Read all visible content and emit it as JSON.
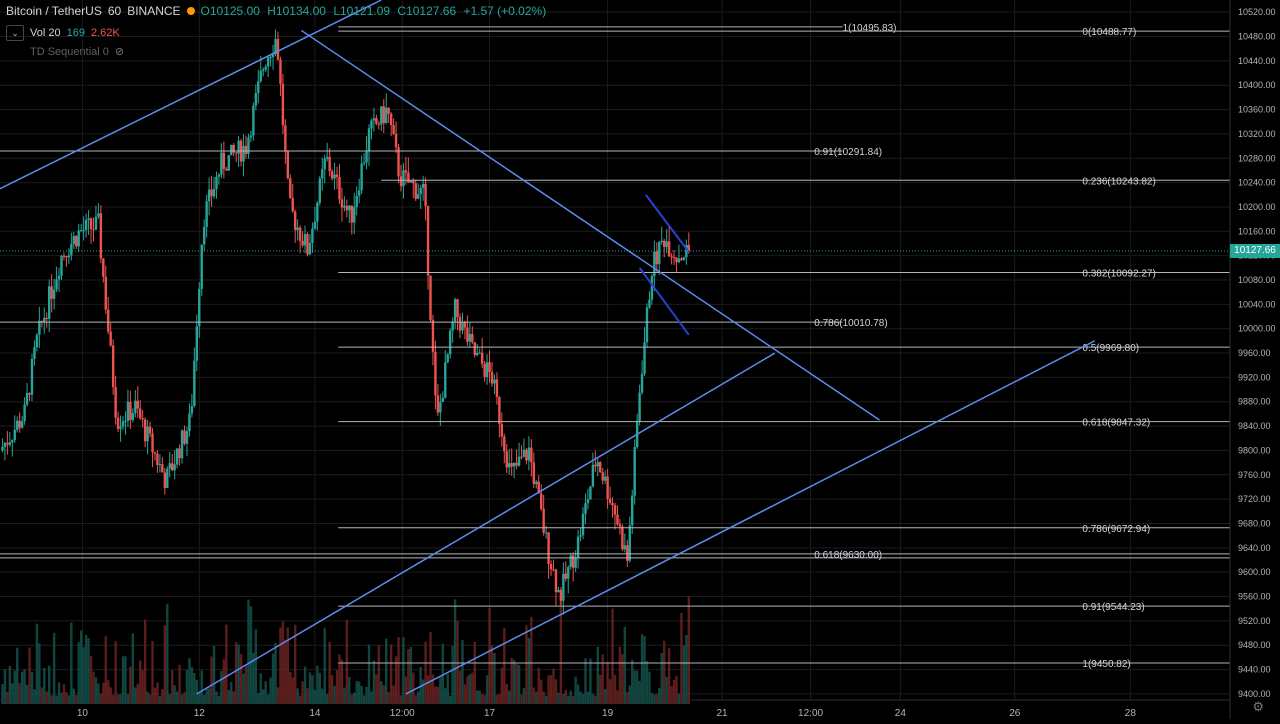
{
  "header": {
    "symbol": "Bitcoin / TetherUS",
    "interval": "60",
    "exchange": "BINANCE",
    "open": "O10125.00",
    "high": "H10134.00",
    "low": "L10121.09",
    "close": "C10127.66",
    "change": "+1.57 (+0.02%)"
  },
  "indicators": {
    "vol_label": "Vol 20",
    "vol_value_a": "169",
    "vol_value_b": "2.62K",
    "td_label": "TD Sequential 0"
  },
  "last_price": "10127.66",
  "colors": {
    "up": "#26a69a",
    "down": "#ef5350",
    "trendline": "#5b8def",
    "flag": "#2940d3",
    "fib_line": "#b2b5be",
    "background": "#000000",
    "grid": "#1c1c1c"
  },
  "chart_data": {
    "type": "candlestick",
    "y_range": [
      9390,
      10540
    ],
    "y_ticks": [
      "10520.00",
      "10480.00",
      "10440.00",
      "10400.00",
      "10360.00",
      "10320.00",
      "10280.00",
      "10240.00",
      "10200.00",
      "10160.00",
      "10120.00",
      "10080.00",
      "10040.00",
      "10000.00",
      "9960.00",
      "9920.00",
      "9880.00",
      "9840.00",
      "9800.00",
      "9760.00",
      "9720.00",
      "9680.00",
      "9640.00",
      "9600.00",
      "9560.00",
      "9520.00",
      "9480.00",
      "9440.00",
      "9400.00"
    ],
    "x_ticks": [
      "10",
      "12",
      "14",
      "12:00",
      "17",
      "19",
      "21",
      "12:00",
      "24",
      "26",
      "28"
    ],
    "fib_levels": [
      {
        "label": "1(10495.83)",
        "price": 10495.83
      },
      {
        "label": "0(10488.77)",
        "price": 10488.77
      },
      {
        "label": "0.91(10291.84)",
        "price": 10291.84
      },
      {
        "label": "0.236(10243.82)",
        "price": 10243.82
      },
      {
        "label": "0.382(10092.27)",
        "price": 10092.27
      },
      {
        "label": "0.786(10010.78)",
        "price": 10010.78
      },
      {
        "label": "0.5(9969.80)",
        "price": 9969.8
      },
      {
        "label": "0.618(9847.32)",
        "price": 9847.32
      },
      {
        "label": "0.786(9672.94)",
        "price": 9672.94
      },
      {
        "label": "0.618(9630.00)",
        "price": 9630.0
      },
      {
        "label": "0.91(9544.23)",
        "price": 9544.23
      },
      {
        "label": "1(9450.82)",
        "price": 9450.82
      }
    ],
    "price_path": [
      {
        "t": 0.0,
        "p": 9800
      },
      {
        "t": 0.02,
        "p": 9860
      },
      {
        "t": 0.03,
        "p": 9980
      },
      {
        "t": 0.05,
        "p": 10120
      },
      {
        "t": 0.065,
        "p": 10160
      },
      {
        "t": 0.08,
        "p": 10170
      },
      {
        "t": 0.095,
        "p": 9850
      },
      {
        "t": 0.11,
        "p": 9870
      },
      {
        "t": 0.135,
        "p": 9750
      },
      {
        "t": 0.155,
        "p": 9850
      },
      {
        "t": 0.165,
        "p": 10180
      },
      {
        "t": 0.18,
        "p": 10270
      },
      {
        "t": 0.2,
        "p": 10300
      },
      {
        "t": 0.215,
        "p": 10440
      },
      {
        "t": 0.225,
        "p": 10480
      },
      {
        "t": 0.235,
        "p": 10200
      },
      {
        "t": 0.25,
        "p": 10130
      },
      {
        "t": 0.265,
        "p": 10280
      },
      {
        "t": 0.285,
        "p": 10180
      },
      {
        "t": 0.3,
        "p": 10320
      },
      {
        "t": 0.315,
        "p": 10360
      },
      {
        "t": 0.325,
        "p": 10250
      },
      {
        "t": 0.345,
        "p": 10220
      },
      {
        "t": 0.355,
        "p": 9840
      },
      {
        "t": 0.37,
        "p": 10030
      },
      {
        "t": 0.385,
        "p": 9960
      },
      {
        "t": 0.4,
        "p": 9920
      },
      {
        "t": 0.415,
        "p": 9760
      },
      {
        "t": 0.43,
        "p": 9800
      },
      {
        "t": 0.445,
        "p": 9640
      },
      {
        "t": 0.455,
        "p": 9560
      },
      {
        "t": 0.47,
        "p": 9650
      },
      {
        "t": 0.485,
        "p": 9790
      },
      {
        "t": 0.5,
        "p": 9700
      },
      {
        "t": 0.51,
        "p": 9620
      },
      {
        "t": 0.52,
        "p": 9900
      },
      {
        "t": 0.53,
        "p": 10100
      },
      {
        "t": 0.54,
        "p": 10150
      },
      {
        "t": 0.55,
        "p": 10120
      },
      {
        "t": 0.56,
        "p": 10127
      }
    ],
    "trendlines": [
      {
        "name": "rising-wedge-top",
        "points": [
          [
            0.0,
            10230
          ],
          [
            0.31,
            10540
          ]
        ]
      },
      {
        "name": "falling-resistance",
        "points": [
          [
            0.245,
            10490
          ],
          [
            0.715,
            9850
          ]
        ]
      },
      {
        "name": "channel-upper",
        "points": [
          [
            0.16,
            9400
          ],
          [
            0.63,
            9960
          ]
        ]
      },
      {
        "name": "channel-lower",
        "points": [
          [
            0.33,
            9400
          ],
          [
            0.89,
            9980
          ]
        ]
      },
      {
        "name": "flag-upper",
        "points": [
          [
            0.525,
            10220
          ],
          [
            0.56,
            10126
          ]
        ]
      },
      {
        "name": "flag-lower",
        "points": [
          [
            0.52,
            10100
          ],
          [
            0.56,
            9990
          ]
        ]
      }
    ]
  }
}
